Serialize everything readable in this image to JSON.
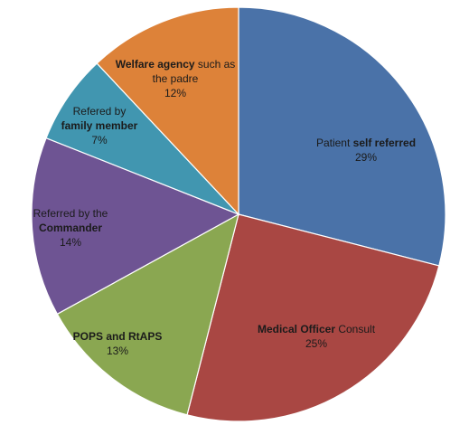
{
  "chart_data": {
    "type": "pie",
    "title": "",
    "start_angle_deg": 0,
    "direction": "clockwise",
    "slices": [
      {
        "label_parts": [
          [
            "Patient ",
            false
          ],
          [
            "self referred",
            true
          ]
        ],
        "label_line2": [],
        "value": 29,
        "value_label": "29%",
        "color": "#4a72a8"
      },
      {
        "label_parts": [
          [
            "Medical Officer",
            true
          ],
          [
            " Consult",
            false
          ]
        ],
        "label_line2": [],
        "value": 25,
        "value_label": "25%",
        "color": "#a94743"
      },
      {
        "label_parts": [
          [
            "POPS and RtAPS",
            true
          ]
        ],
        "label_line2": [],
        "value": 13,
        "value_label": "13%",
        "color": "#8aa751"
      },
      {
        "label_parts": [
          [
            "Referred by the",
            false
          ]
        ],
        "label_line2": [
          [
            "Commander",
            true
          ]
        ],
        "value": 14,
        "value_label": "14%",
        "color": "#6e5493"
      },
      {
        "label_parts": [
          [
            "Refered by",
            false
          ]
        ],
        "label_line2": [
          [
            "family member",
            true
          ]
        ],
        "value": 7,
        "value_label": "7%",
        "color": "#4196b0"
      },
      {
        "label_parts": [
          [
            "Welfare agency",
            true
          ],
          [
            " such as",
            false
          ]
        ],
        "label_line2": [
          [
            "the padre",
            false
          ]
        ],
        "value": 12,
        "value_label": "12%",
        "color": "#dd8239"
      }
    ]
  }
}
